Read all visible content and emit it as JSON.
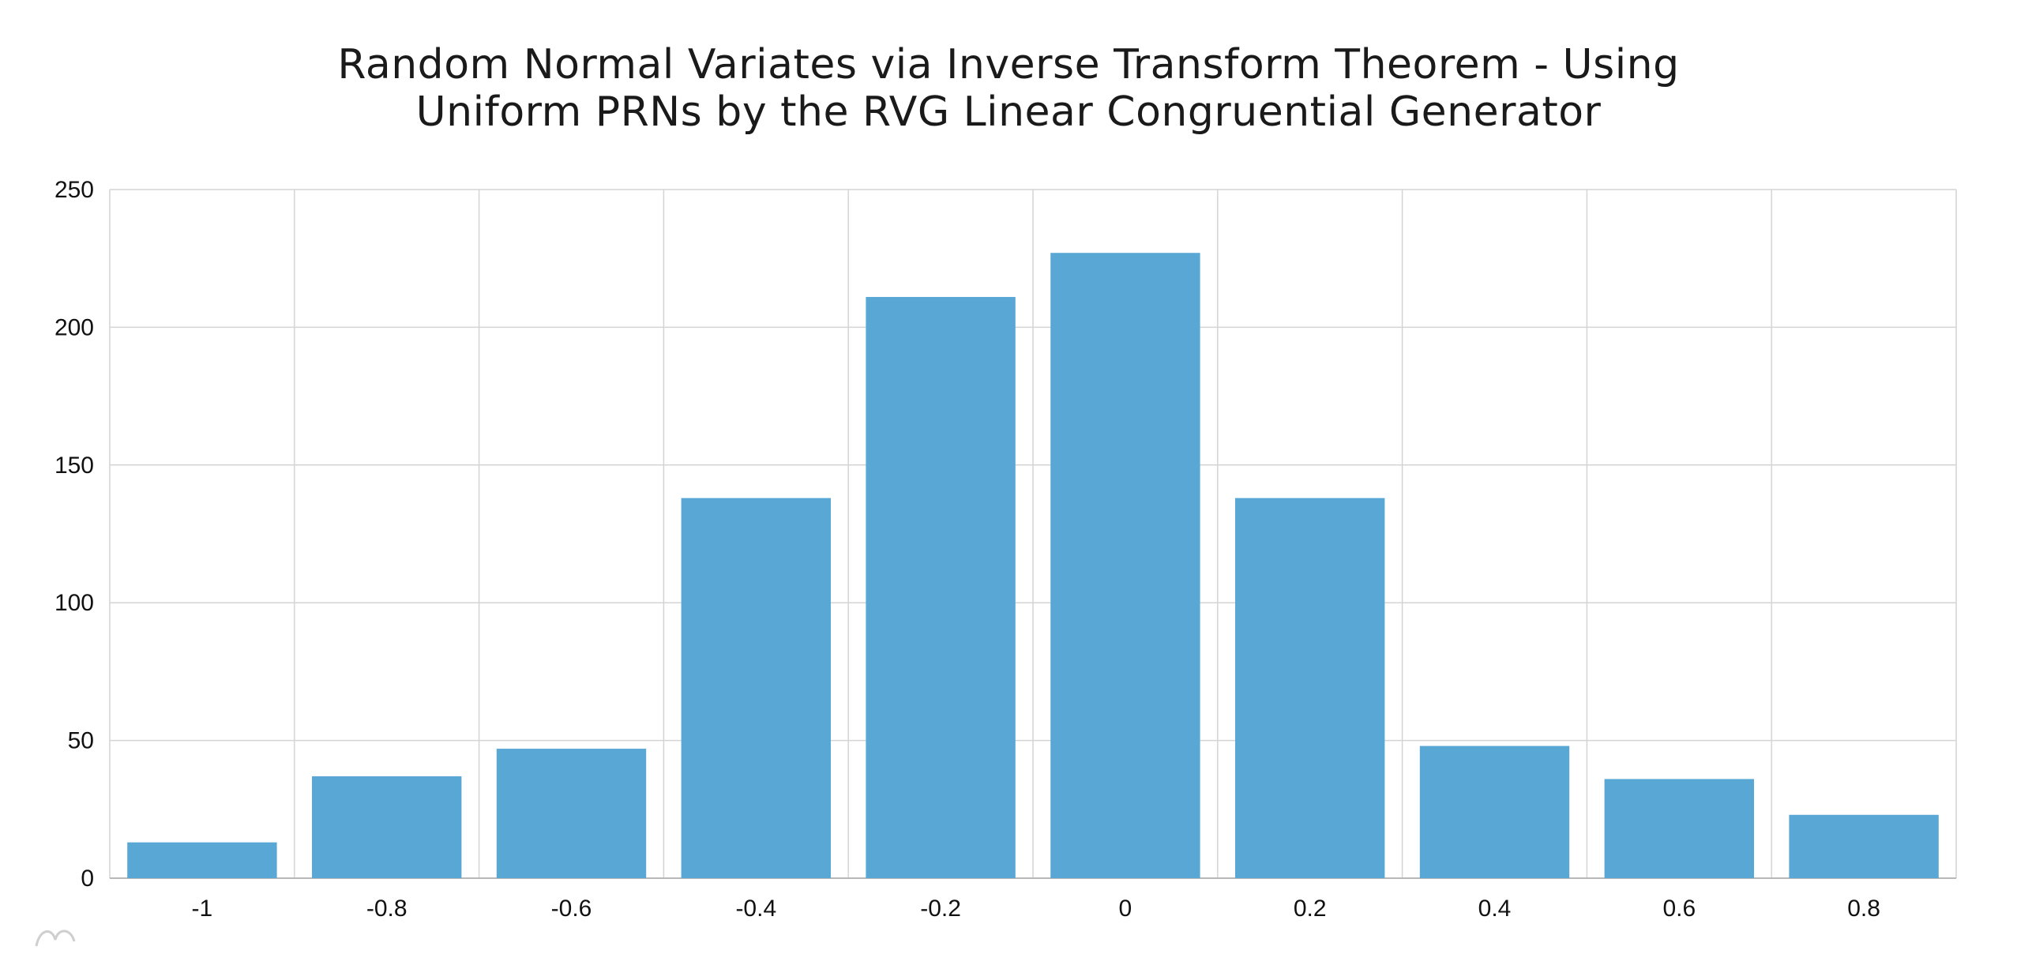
{
  "chart_data": {
    "type": "bar",
    "title_lines": [
      "Random Normal Variates via Inverse Transform Theorem - Using",
      "Uniform PRNs by the RVG Linear Congruential Generator"
    ],
    "categories": [
      "-1",
      "-0.8",
      "-0.6",
      "-0.4",
      "-0.2",
      "0",
      "0.2",
      "0.4",
      "0.6",
      "0.8"
    ],
    "series": [
      {
        "values": [
          13,
          37,
          47,
          138,
          211,
          227,
          138,
          48,
          36,
          23
        ]
      }
    ],
    "ylim": [
      0,
      250
    ],
    "yticks": [
      "0",
      "50",
      "100",
      "150",
      "200",
      "250"
    ],
    "xlabel": "",
    "ylabel": "",
    "grid": true,
    "legend": "none",
    "colors": {
      "bar": "#58a7d4",
      "grid": "#d4d4d4",
      "axis": "#b8b8b8"
    }
  }
}
